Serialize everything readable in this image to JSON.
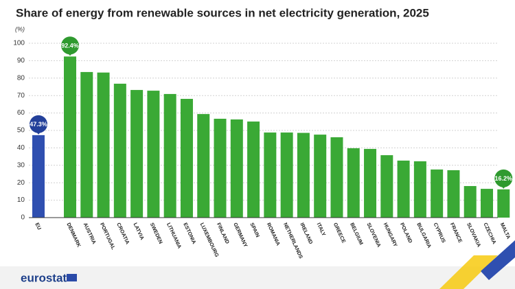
{
  "chart_data": {
    "type": "bar",
    "title": "Share of energy from renewable sources in net electricity generation, 2025",
    "subtitle": "(%)",
    "categories": [
      "EU",
      "DENMARK",
      "AUSTRIA",
      "PORTUGAL",
      "CROATIA",
      "LATVIA",
      "SWEDEN",
      "LITHUANIA",
      "ESTONIA",
      "LUXEMBOURG",
      "FINLAND",
      "GERMANY",
      "SPAIN",
      "ROMANIA",
      "NETHERLANDS",
      "IRELAND",
      "ITALY",
      "GREECE",
      "BELGIUM",
      "SLOVENIA",
      "HUNGARY",
      "POLAND",
      "BULGARIA",
      "CYPRUS",
      "FRANCE",
      "SLOVAKIA",
      "CZECHIA",
      "MALTA"
    ],
    "values": [
      47.3,
      92.4,
      83.5,
      83.2,
      76.8,
      73.2,
      72.8,
      70.9,
      68.1,
      59.4,
      56.7,
      56.3,
      55.1,
      48.8,
      48.8,
      48.6,
      47.6,
      46.1,
      39.8,
      39.4,
      35.8,
      32.7,
      32.3,
      27.6,
      27.2,
      18.1,
      16.5,
      16.2
    ],
    "value_labels": [
      "47.3%",
      "92.4%",
      null,
      null,
      null,
      null,
      null,
      null,
      null,
      null,
      null,
      null,
      null,
      null,
      null,
      null,
      null,
      null,
      null,
      null,
      null,
      null,
      null,
      null,
      null,
      null,
      null,
      "16.2%"
    ],
    "color": "#3aa935",
    "highlight_color": "#2f4fb0",
    "ylim": [
      0,
      100
    ],
    "yticks": [
      0,
      10,
      20,
      30,
      40,
      50,
      60,
      70,
      80,
      90,
      100
    ],
    "grid": true,
    "logo": "eurostat"
  }
}
